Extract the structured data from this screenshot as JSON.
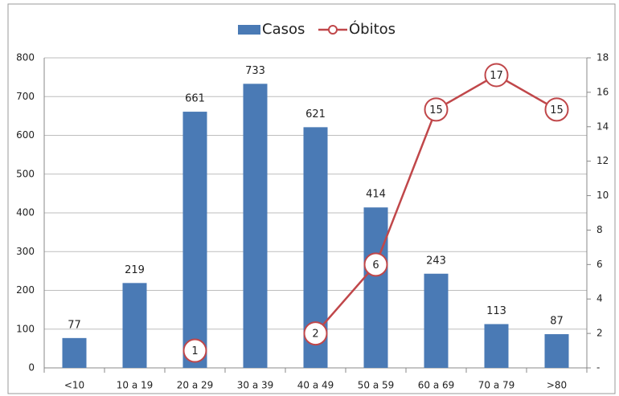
{
  "chart_data": {
    "type": "bar_line",
    "categories": [
      "<10",
      "10 a 19",
      "20 a 29",
      "30 a 39",
      "40 a 49",
      "50 a 59",
      "60 a 69",
      "70 a 79",
      ">80"
    ],
    "series": [
      {
        "name": "Casos",
        "type": "bar",
        "color": "#4a7ab5",
        "values": [
          77,
          219,
          661,
          733,
          621,
          414,
          243,
          113,
          87
        ]
      },
      {
        "name": "Óbitos",
        "type": "line",
        "axis": "y2",
        "color": "#c0474a",
        "values": [
          null,
          null,
          1,
          null,
          2,
          6,
          15,
          17,
          15
        ]
      }
    ],
    "ylim": [
      0,
      800
    ],
    "yticks": [
      0,
      100,
      200,
      300,
      400,
      500,
      600,
      700,
      800
    ],
    "y2lim": [
      0,
      18
    ],
    "y2ticks": [
      {
        "value": 0,
        "label": "-"
      },
      2,
      4,
      6,
      8,
      10,
      12,
      14,
      16,
      18
    ],
    "grid": true,
    "legend": "top"
  }
}
